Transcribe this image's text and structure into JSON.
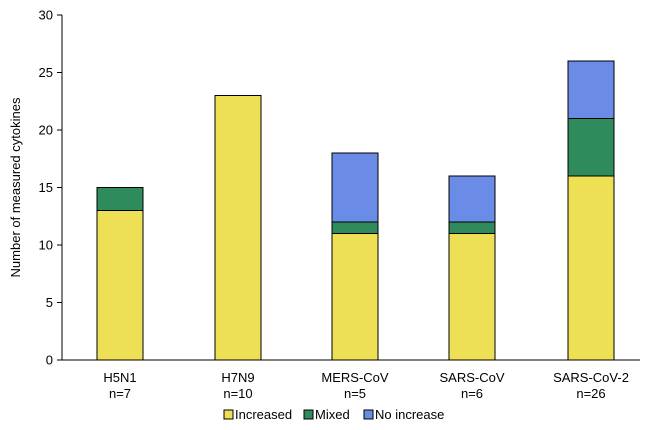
{
  "colors": {
    "increased": "#ede054",
    "mixed": "#2f8a5c",
    "no_increase": "#6a8be6",
    "axis": "#000000"
  },
  "chart_data": {
    "type": "bar",
    "stacked": true,
    "ylabel": "Number of measured cytokines",
    "xlabel": "",
    "ylim": [
      0,
      30
    ],
    "yticks": [
      0,
      5,
      10,
      15,
      20,
      25,
      30
    ],
    "categories": [
      {
        "name": "H5N1",
        "n": "n=7"
      },
      {
        "name": "H7N9",
        "n": "n=10"
      },
      {
        "name": "MERS-CoV",
        "n": "n=5"
      },
      {
        "name": "SARS-CoV",
        "n": "n=6"
      },
      {
        "name": "SARS-CoV-2",
        "n": "n=26"
      }
    ],
    "series": [
      {
        "name": "Increased",
        "color_key": "increased",
        "values": [
          13,
          23,
          11,
          11,
          16
        ]
      },
      {
        "name": "Mixed",
        "color_key": "mixed",
        "values": [
          2,
          0,
          1,
          1,
          5
        ]
      },
      {
        "name": "No increase",
        "color_key": "no_increase",
        "values": [
          0,
          0,
          6,
          4,
          5
        ]
      }
    ],
    "legend_position": "bottom-center",
    "grid": false
  }
}
